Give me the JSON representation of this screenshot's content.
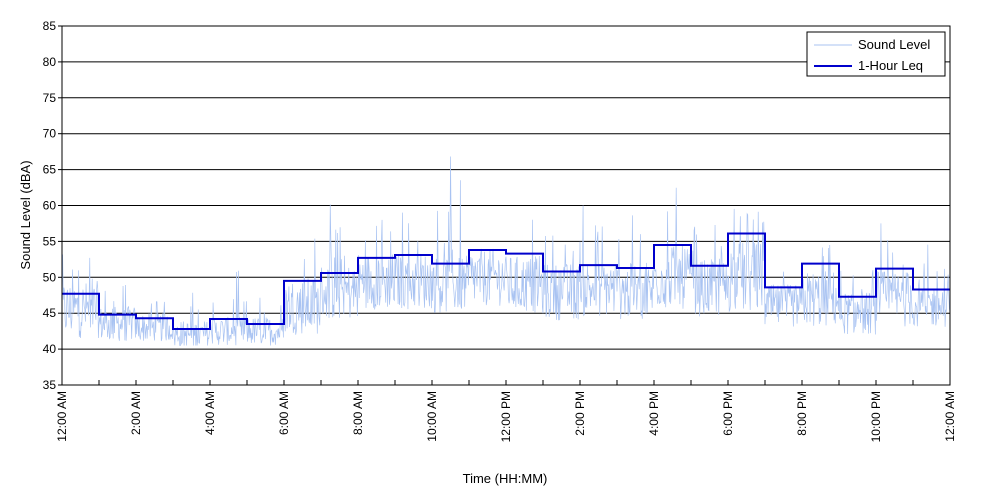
{
  "chart_data": {
    "type": "line",
    "title": "",
    "xlabel": "Time (HH:MM)",
    "ylabel": "Sound Level (dBA)",
    "xlim": [
      0,
      24
    ],
    "ylim": [
      35,
      85
    ],
    "yticks": [
      35,
      40,
      45,
      50,
      55,
      60,
      65,
      70,
      75,
      80,
      85
    ],
    "xticks": [
      0,
      1,
      2,
      3,
      4,
      5,
      6,
      7,
      8,
      9,
      10,
      11,
      12,
      13,
      14,
      15,
      16,
      17,
      18,
      19,
      20,
      21,
      22,
      23,
      24
    ],
    "xtick_labels": [
      {
        "x": 0,
        "label": "12:00 AM"
      },
      {
        "x": 2,
        "label": "2:00 AM"
      },
      {
        "x": 4,
        "label": "4:00 AM"
      },
      {
        "x": 6,
        "label": "6:00 AM"
      },
      {
        "x": 8,
        "label": "8:00 AM"
      },
      {
        "x": 10,
        "label": "10:00 AM"
      },
      {
        "x": 12,
        "label": "12:00 PM"
      },
      {
        "x": 14,
        "label": "2:00 PM"
      },
      {
        "x": 16,
        "label": "4:00 PM"
      },
      {
        "x": 18,
        "label": "6:00 PM"
      },
      {
        "x": 20,
        "label": "8:00 PM"
      },
      {
        "x": 22,
        "label": "10:00 PM"
      },
      {
        "x": 24,
        "label": "12:00 AM"
      }
    ],
    "grid": "horizontal",
    "legend": "top-right",
    "series": [
      {
        "name": "Sound Level",
        "color": "#a9c3f2",
        "style": "thin-line",
        "hourly_profile": [
          {
            "hour": 0,
            "base": 45.5,
            "spread": 4,
            "peak": 54
          },
          {
            "hour": 1,
            "base": 43.5,
            "spread": 2.5,
            "peak": 51
          },
          {
            "hour": 2,
            "base": 43,
            "spread": 2,
            "peak": 48
          },
          {
            "hour": 3,
            "base": 42,
            "spread": 2,
            "peak": 52
          },
          {
            "hour": 4,
            "base": 42.5,
            "spread": 2,
            "peak": 51
          },
          {
            "hour": 5,
            "base": 42.5,
            "spread": 2,
            "peak": 50
          },
          {
            "hour": 6,
            "base": 46,
            "spread": 4,
            "peak": 62
          },
          {
            "hour": 7,
            "base": 48,
            "spread": 4,
            "peak": 61
          },
          {
            "hour": 8,
            "base": 49.5,
            "spread": 4,
            "peak": 62
          },
          {
            "hour": 9,
            "base": 49.5,
            "spread": 4,
            "peak": 64
          },
          {
            "hour": 10,
            "base": 49,
            "spread": 4,
            "peak": 67
          },
          {
            "hour": 11,
            "base": 50,
            "spread": 4,
            "peak": 63
          },
          {
            "hour": 12,
            "base": 49,
            "spread": 4,
            "peak": 67
          },
          {
            "hour": 13,
            "base": 48,
            "spread": 4,
            "peak": 60
          },
          {
            "hour": 14,
            "base": 48.5,
            "spread": 4,
            "peak": 61
          },
          {
            "hour": 15,
            "base": 48,
            "spread": 4,
            "peak": 59
          },
          {
            "hour": 16,
            "base": 50,
            "spread": 4.5,
            "peak": 64
          },
          {
            "hour": 17,
            "base": 48.5,
            "spread": 4,
            "peak": 63
          },
          {
            "hour": 18,
            "base": 50,
            "spread": 5,
            "peak": 63
          },
          {
            "hour": 19,
            "base": 46,
            "spread": 3,
            "peak": 55
          },
          {
            "hour": 20,
            "base": 47,
            "spread": 4,
            "peak": 56
          },
          {
            "hour": 21,
            "base": 45,
            "spread": 3,
            "peak": 53
          },
          {
            "hour": 22,
            "base": 47,
            "spread": 4,
            "peak": 58
          },
          {
            "hour": 23,
            "base": 46,
            "spread": 3,
            "peak": 56
          }
        ]
      },
      {
        "name": "1-Hour Leq",
        "color": "#0000cc",
        "style": "step",
        "x": [
          0,
          1,
          2,
          3,
          4,
          5,
          6,
          7,
          8,
          9,
          10,
          11,
          12,
          13,
          14,
          15,
          16,
          17,
          18,
          19,
          20,
          21,
          22,
          23
        ],
        "values": [
          47.7,
          44.8,
          44.3,
          42.8,
          44.2,
          43.5,
          49.5,
          50.6,
          52.7,
          53.1,
          51.9,
          53.8,
          53.3,
          50.8,
          51.7,
          51.3,
          54.5,
          51.6,
          56.1,
          48.6,
          51.9,
          47.3,
          51.2,
          48.3
        ]
      }
    ]
  }
}
